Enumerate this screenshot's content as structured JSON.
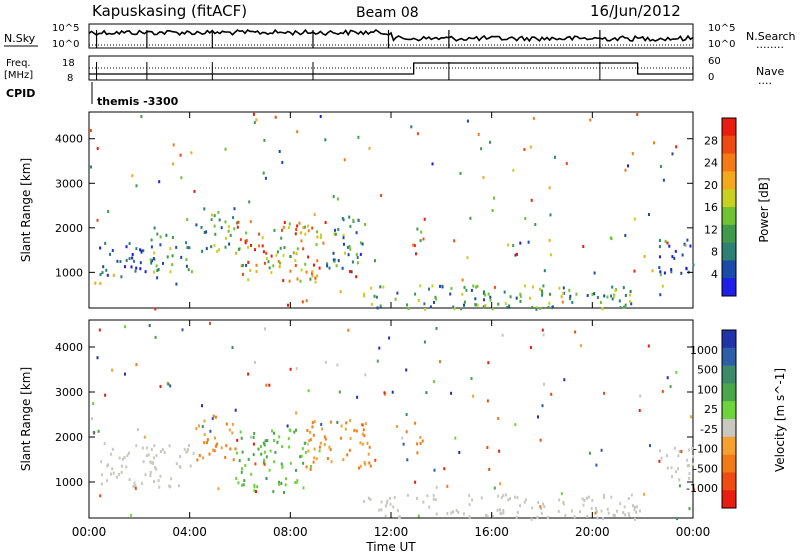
{
  "header": {
    "station": "Kapuskasing (fitACF)",
    "beam": "Beam 08",
    "date": "16/Jun/2012"
  },
  "top_panel": {
    "left_label": "N.Sky",
    "left_ticks": [
      "10^5",
      "10^0"
    ],
    "right_ticks": [
      "10^5",
      "10^0"
    ],
    "right_label": "N.Search",
    "right_legend_line": "........"
  },
  "freq_panel": {
    "left_label_1": "Freq.",
    "left_label_2": "[MHz]",
    "left_ticks": [
      "18",
      "8"
    ],
    "right_ticks": [
      "60",
      "0"
    ],
    "right_label": "Nave",
    "right_legend_line": "....",
    "step_times_hours": [
      0,
      12.9,
      21.8,
      24
    ]
  },
  "cpid": {
    "label": "CPID",
    "program": "themis -3300"
  },
  "chart_data": [
    {
      "type": "heatmap",
      "title": "",
      "ylabel": "Slant Range [km]",
      "xlabel": "",
      "xlim": [
        0,
        24
      ],
      "ylim": [
        200,
        4600
      ],
      "yticks": [
        "1000",
        "2000",
        "3000",
        "4000"
      ],
      "colorbar": {
        "label": "Power [dB]",
        "ticks": [
          "4",
          "8",
          "12",
          "16",
          "20",
          "24",
          "28"
        ],
        "colors": [
          "#1e1ee8",
          "#1b4ba8",
          "#2e7f74",
          "#3f9a4c",
          "#6fc232",
          "#c8d020",
          "#f5a81a",
          "#f47b14",
          "#ef4a12",
          "#e81d0f"
        ]
      },
      "echo_regions": [
        {
          "t0": 0.4,
          "t1": 2.4,
          "r0": 900,
          "r1": 1700,
          "level": "low"
        },
        {
          "t0": 2.4,
          "t1": 4.2,
          "r0": 1000,
          "r1": 1900,
          "level": "mid"
        },
        {
          "t0": 4.2,
          "t1": 5.8,
          "r0": 1500,
          "r1": 2500,
          "level": "mid"
        },
        {
          "t0": 5.8,
          "t1": 9.4,
          "r0": 800,
          "r1": 2200,
          "level": "high"
        },
        {
          "t0": 9.4,
          "t1": 11.0,
          "r0": 1100,
          "r1": 2300,
          "level": "mid"
        },
        {
          "t0": 12.9,
          "t1": 13.3,
          "r0": 1600,
          "r1": 2400,
          "level": "high"
        },
        {
          "t0": 10.8,
          "t1": 21.9,
          "r0": 200,
          "r1": 750,
          "level": "mid"
        },
        {
          "t0": 22.6,
          "t1": 24,
          "r0": 1000,
          "r1": 1800,
          "level": "low"
        }
      ]
    },
    {
      "type": "heatmap",
      "title": "",
      "ylabel": "Slant Range [km]",
      "xlabel": "Time UT",
      "xlim": [
        0,
        24
      ],
      "ylim": [
        200,
        4600
      ],
      "xticks": [
        "00:00",
        "04:00",
        "08:00",
        "12:00",
        "16:00",
        "20:00",
        "00:00"
      ],
      "yticks": [
        "1000",
        "2000",
        "3000",
        "4000"
      ],
      "colorbar": {
        "label": "Velocity [m s^-1]",
        "ticks": [
          "1000",
          "500",
          "100",
          "25",
          "-25",
          "-100",
          "-500",
          "-1000"
        ],
        "colors": [
          "#2233aa",
          "#2f5ea8",
          "#3d8a6a",
          "#4aa64a",
          "#6ed43c",
          "#c8c8c0",
          "#f5a030",
          "#f27a18",
          "#ef4c12",
          "#e81d0f"
        ]
      },
      "echo_regions": [
        {
          "t0": 0.4,
          "t1": 4.2,
          "r0": 900,
          "r1": 1900,
          "level": "ground"
        },
        {
          "t0": 4.2,
          "t1": 5.8,
          "r0": 1500,
          "r1": 2500,
          "level": "neg"
        },
        {
          "t0": 5.8,
          "t1": 8.6,
          "r0": 800,
          "r1": 2200,
          "level": "pos"
        },
        {
          "t0": 8.6,
          "t1": 11.2,
          "r0": 1300,
          "r1": 2400,
          "level": "neg"
        },
        {
          "t0": 12.9,
          "t1": 13.3,
          "r0": 1600,
          "r1": 2400,
          "level": "neg"
        },
        {
          "t0": 10.8,
          "t1": 21.9,
          "r0": 200,
          "r1": 750,
          "level": "ground"
        },
        {
          "t0": 22.6,
          "t1": 24,
          "r0": 1000,
          "r1": 1800,
          "level": "ground"
        }
      ]
    }
  ]
}
